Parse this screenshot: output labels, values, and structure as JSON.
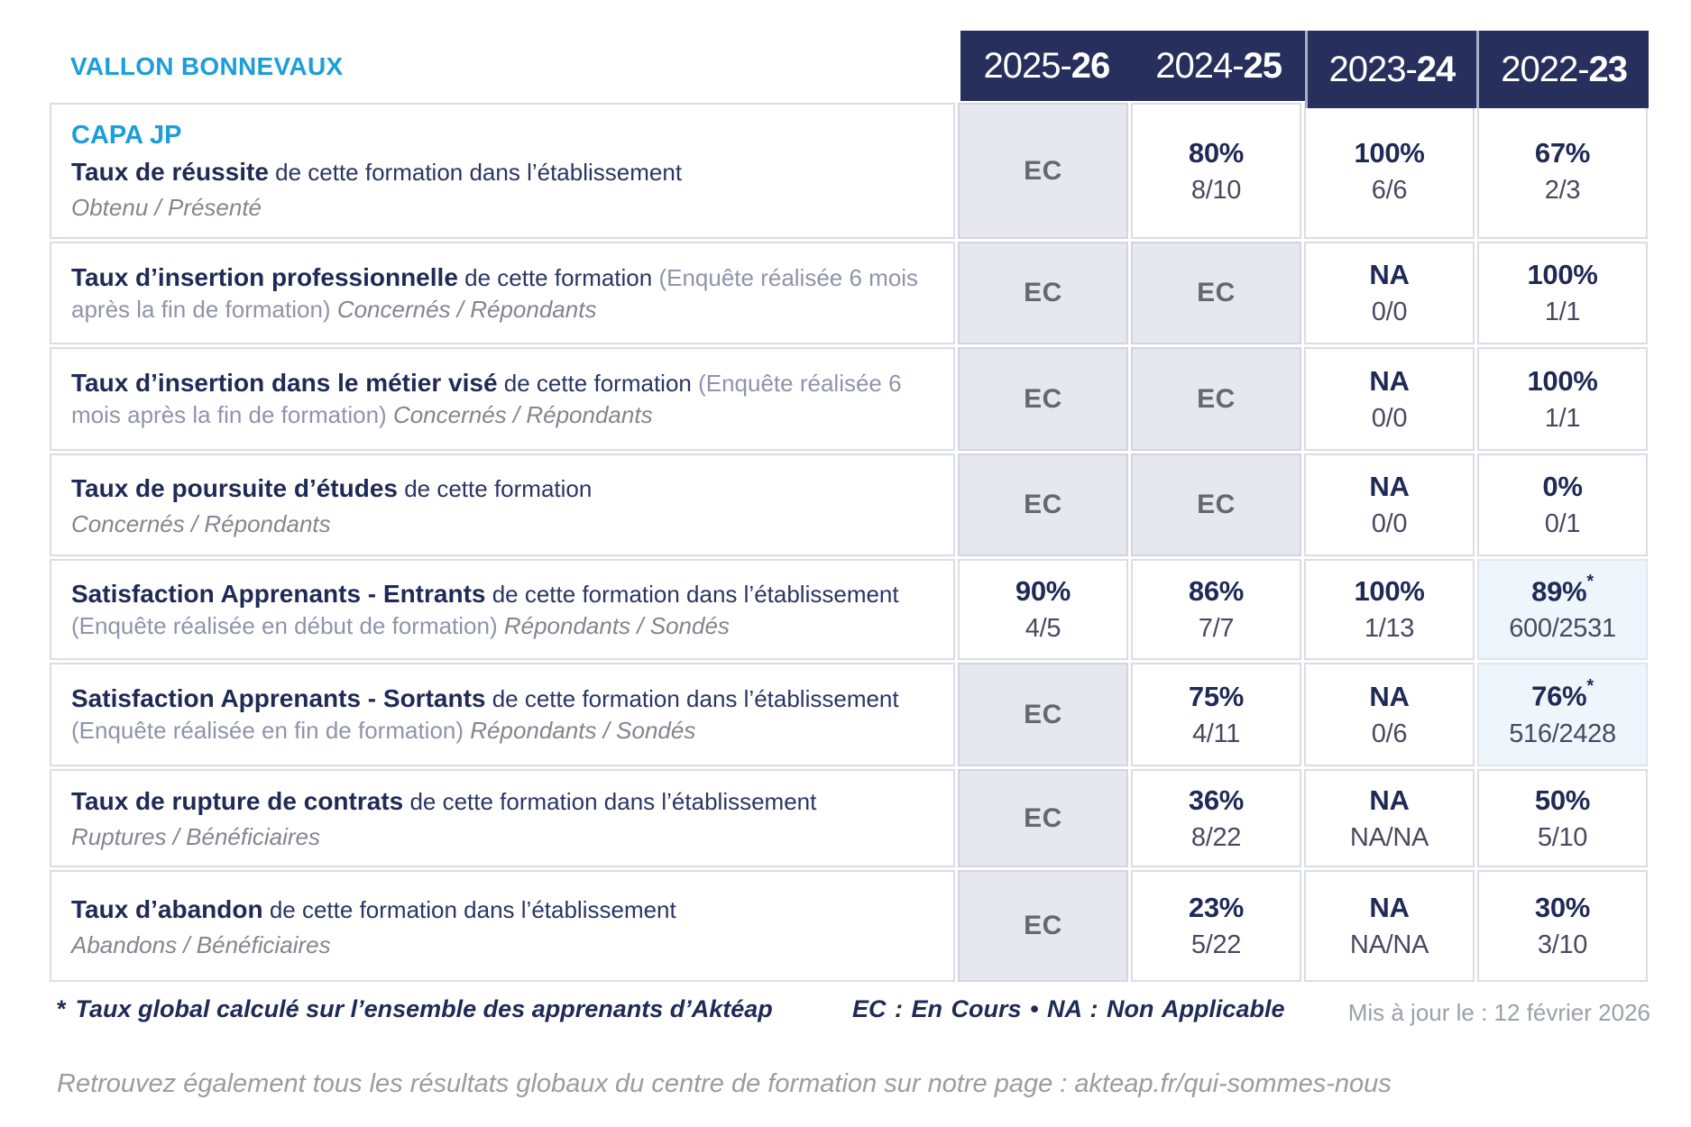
{
  "site": {
    "name": "VALLON BONNEVAUX"
  },
  "header": {
    "columns": [
      {
        "start": "2025-",
        "bold": "26"
      },
      {
        "start": "2024-",
        "bold": "25"
      },
      {
        "start": "2023-",
        "bold": "24"
      },
      {
        "start": "2022-",
        "bold": "23"
      }
    ]
  },
  "table": {
    "rows": [
      {
        "label": {
          "prefix": "CAPA JP",
          "title": "Taux de réussite",
          "desc": " de cette formation dans l’établissement",
          "paren": "",
          "tail": "",
          "sub": "Obtenu / Présenté"
        },
        "cells": [
          {
            "ec": true,
            "text": "EC"
          },
          {
            "main": "80%",
            "sub": "8/10"
          },
          {
            "main": "100%",
            "sub": "6/6"
          },
          {
            "main": "67%",
            "sub": "2/3"
          }
        ]
      },
      {
        "label": {
          "prefix": "",
          "title": "Taux d’insertion professionnelle",
          "desc": " de cette formation ",
          "paren": "(Enquête réalisée 6 mois après la fin de formation) ",
          "tail": "Concernés / Répondants",
          "sub": ""
        },
        "cells": [
          {
            "ec": true,
            "text": "EC"
          },
          {
            "ec": true,
            "text": "EC"
          },
          {
            "main": "NA",
            "sub": "0/0"
          },
          {
            "main": "100%",
            "sub": "1/1"
          }
        ]
      },
      {
        "label": {
          "prefix": "",
          "title": "Taux d’insertion dans le métier visé",
          "desc": " de cette formation ",
          "paren": "(Enquête réalisée 6 mois après la fin de formation) ",
          "tail": "Concernés / Répondants",
          "sub": ""
        },
        "cells": [
          {
            "ec": true,
            "text": "EC"
          },
          {
            "ec": true,
            "text": "EC"
          },
          {
            "main": "NA",
            "sub": "0/0"
          },
          {
            "main": "100%",
            "sub": "1/1"
          }
        ]
      },
      {
        "label": {
          "prefix": "",
          "title": "Taux de poursuite d’études",
          "desc": " de cette formation",
          "paren": "",
          "tail": "",
          "sub": "Concernés / Répondants"
        },
        "cells": [
          {
            "ec": true,
            "text": "EC"
          },
          {
            "ec": true,
            "text": "EC"
          },
          {
            "main": "NA",
            "sub": "0/0"
          },
          {
            "main": "0%",
            "sub": "0/1"
          }
        ]
      },
      {
        "label": {
          "prefix": "",
          "title": "Satisfaction Apprenants - Entrants",
          "desc": " de cette formation dans l’établissement ",
          "paren": "(Enquête réalisée en début de formation) ",
          "tail": "Répondants / Sondés",
          "sub": ""
        },
        "cells": [
          {
            "main": "90%",
            "sub": "4/5"
          },
          {
            "main": "86%",
            "sub": "7/7"
          },
          {
            "main": "100%",
            "sub": "1/13"
          },
          {
            "main": "89%",
            "star": true,
            "sub": "600/2531",
            "highlight": true
          }
        ]
      },
      {
        "label": {
          "prefix": "",
          "title": "Satisfaction Apprenants - Sortants",
          "desc": " de cette formation dans l’établissement ",
          "paren": "(Enquête réalisée en fin de formation) ",
          "tail": "Répondants / Sondés",
          "sub": ""
        },
        "cells": [
          {
            "ec": true,
            "text": "EC"
          },
          {
            "main": "75%",
            "sub": "4/11"
          },
          {
            "main": "NA",
            "sub": "0/6"
          },
          {
            "main": "76%",
            "star": true,
            "sub": "516/2428",
            "highlight": true
          }
        ]
      },
      {
        "label": {
          "prefix": "",
          "title": "Taux de rupture de contrats",
          "desc": " de cette formation dans l’établissement",
          "paren": "",
          "tail": "",
          "sub": "Ruptures / Bénéficiaires"
        },
        "cells": [
          {
            "ec": true,
            "text": "EC"
          },
          {
            "main": "36%",
            "sub": "8/22"
          },
          {
            "main": "NA",
            "sub": "NA/NA"
          },
          {
            "main": "50%",
            "sub": "5/10"
          }
        ]
      },
      {
        "label": {
          "prefix": "",
          "title": "Taux d’abandon",
          "desc": " de cette formation dans l’établissement",
          "paren": "",
          "tail": "",
          "sub": "Abandons / Bénéficiaires"
        },
        "cells": [
          {
            "ec": true,
            "text": "EC"
          },
          {
            "main": "23%",
            "sub": "5/22"
          },
          {
            "main": "NA",
            "sub": "NA/NA"
          },
          {
            "main": "30%",
            "sub": "3/10"
          }
        ]
      }
    ]
  },
  "legend": {
    "star": "*",
    "note": "Taux global calculé sur l’ensemble des apprenants d’Aktéap",
    "abbr": "EC : En Cours  •  NA : Non Applicable",
    "updated": "Mis à jour le : 12 février 2026"
  },
  "footer": {
    "text": "Retrouvez également tous les résultats globaux du centre de formation sur notre page : akteap.fr/qui-sommes-nous"
  },
  "colors": {
    "navy": "#27305c",
    "navy_text": "#1f2a55",
    "cyan": "#1c9ed9",
    "ec_background": "#e7e7f0",
    "highlight_background": "#eef5fb"
  }
}
